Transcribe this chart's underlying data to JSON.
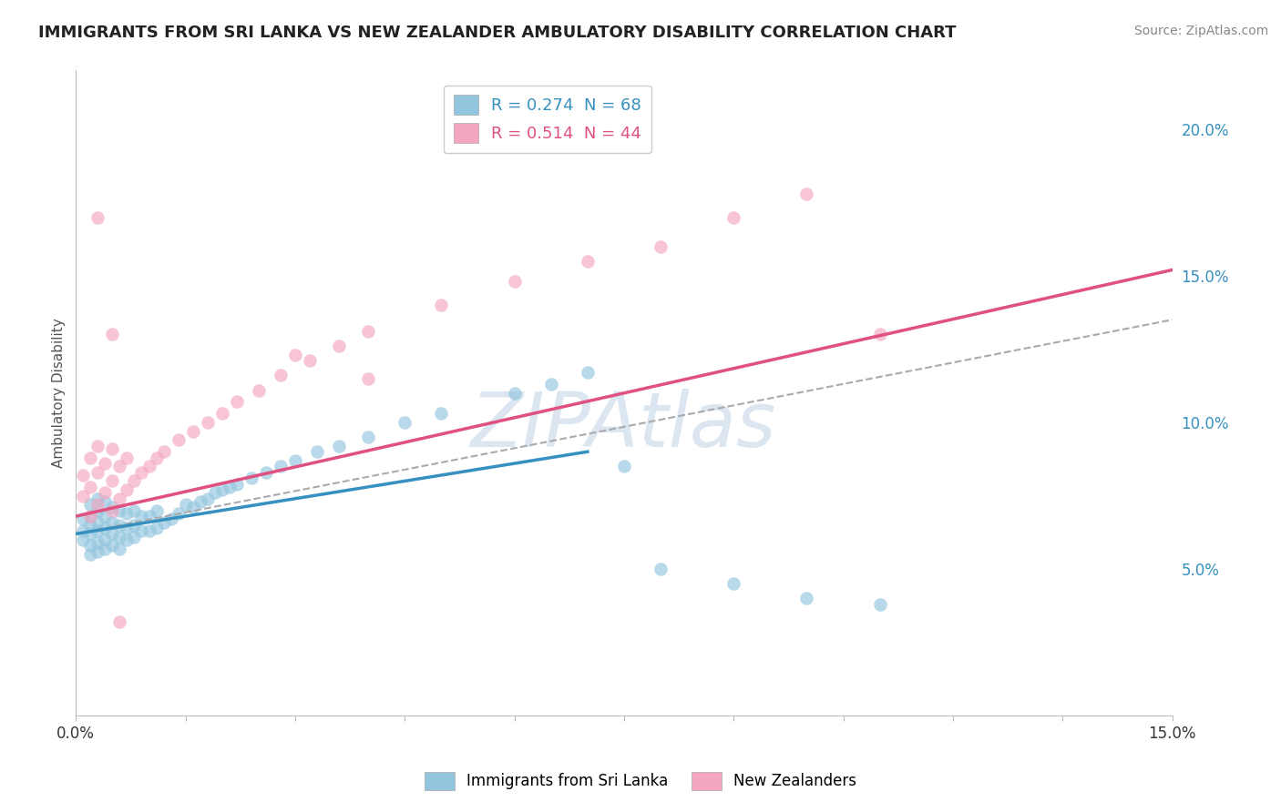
{
  "title": "IMMIGRANTS FROM SRI LANKA VS NEW ZEALANDER AMBULATORY DISABILITY CORRELATION CHART",
  "source": "Source: ZipAtlas.com",
  "ylabel": "Ambulatory Disability",
  "xlim": [
    0.0,
    0.15
  ],
  "ylim": [
    0.0,
    0.22
  ],
  "ytick_positions": [
    0.05,
    0.1,
    0.15,
    0.2
  ],
  "ytick_labels": [
    "5.0%",
    "10.0%",
    "15.0%",
    "20.0%"
  ],
  "xtick_positions": [
    0.0,
    0.15
  ],
  "xtick_labels": [
    "0.0%",
    "15.0%"
  ],
  "blue_R": 0.274,
  "blue_N": 68,
  "pink_R": 0.514,
  "pink_N": 44,
  "blue_color": "#92c5de",
  "pink_color": "#f4a6be",
  "blue_line_color": "#3690c0",
  "pink_line_color": "#e05080",
  "dashed_line_color": "#aaaaaa",
  "watermark": "ZIPAtlas",
  "background_color": "#ffffff",
  "grid_color": "#dddddd",
  "legend_label_blue": "Immigrants from Sri Lanka",
  "legend_label_pink": "New Zealanders",
  "blue_line_x0": 0.0,
  "blue_line_y0": 0.062,
  "blue_line_x1": 0.07,
  "blue_line_y1": 0.09,
  "pink_line_x0": 0.0,
  "pink_line_y0": 0.068,
  "pink_line_x1": 0.15,
  "pink_line_y1": 0.152,
  "dashed_line_x0": 0.0,
  "dashed_line_y0": 0.062,
  "dashed_line_x1": 0.15,
  "dashed_line_y1": 0.135,
  "blue_scatter_x": [
    0.001,
    0.001,
    0.001,
    0.002,
    0.002,
    0.002,
    0.002,
    0.002,
    0.002,
    0.003,
    0.003,
    0.003,
    0.003,
    0.003,
    0.003,
    0.004,
    0.004,
    0.004,
    0.004,
    0.004,
    0.005,
    0.005,
    0.005,
    0.005,
    0.006,
    0.006,
    0.006,
    0.006,
    0.007,
    0.007,
    0.007,
    0.008,
    0.008,
    0.008,
    0.009,
    0.009,
    0.01,
    0.01,
    0.011,
    0.011,
    0.012,
    0.013,
    0.014,
    0.015,
    0.016,
    0.017,
    0.018,
    0.019,
    0.02,
    0.021,
    0.022,
    0.024,
    0.026,
    0.028,
    0.03,
    0.033,
    0.036,
    0.04,
    0.045,
    0.05,
    0.06,
    0.065,
    0.07,
    0.075,
    0.08,
    0.09,
    0.1,
    0.11
  ],
  "blue_scatter_y": [
    0.06,
    0.063,
    0.067,
    0.055,
    0.058,
    0.062,
    0.065,
    0.068,
    0.072,
    0.056,
    0.059,
    0.063,
    0.066,
    0.07,
    0.074,
    0.057,
    0.06,
    0.064,
    0.068,
    0.073,
    0.058,
    0.062,
    0.066,
    0.071,
    0.057,
    0.061,
    0.065,
    0.07,
    0.06,
    0.064,
    0.069,
    0.061,
    0.065,
    0.07,
    0.063,
    0.068,
    0.063,
    0.068,
    0.064,
    0.07,
    0.066,
    0.067,
    0.069,
    0.072,
    0.071,
    0.073,
    0.074,
    0.076,
    0.077,
    0.078,
    0.079,
    0.081,
    0.083,
    0.085,
    0.087,
    0.09,
    0.092,
    0.095,
    0.1,
    0.103,
    0.11,
    0.113,
    0.117,
    0.085,
    0.05,
    0.045,
    0.04,
    0.038
  ],
  "pink_scatter_x": [
    0.001,
    0.001,
    0.002,
    0.002,
    0.002,
    0.003,
    0.003,
    0.003,
    0.004,
    0.004,
    0.005,
    0.005,
    0.005,
    0.006,
    0.006,
    0.007,
    0.007,
    0.008,
    0.009,
    0.01,
    0.011,
    0.012,
    0.014,
    0.016,
    0.018,
    0.02,
    0.022,
    0.025,
    0.028,
    0.032,
    0.036,
    0.04,
    0.05,
    0.06,
    0.07,
    0.08,
    0.09,
    0.1,
    0.11,
    0.03,
    0.003,
    0.005,
    0.006,
    0.04
  ],
  "pink_scatter_y": [
    0.075,
    0.082,
    0.068,
    0.078,
    0.088,
    0.072,
    0.083,
    0.092,
    0.076,
    0.086,
    0.07,
    0.08,
    0.091,
    0.074,
    0.085,
    0.077,
    0.088,
    0.08,
    0.083,
    0.085,
    0.088,
    0.09,
    0.094,
    0.097,
    0.1,
    0.103,
    0.107,
    0.111,
    0.116,
    0.121,
    0.126,
    0.131,
    0.14,
    0.148,
    0.155,
    0.16,
    0.17,
    0.178,
    0.13,
    0.123,
    0.17,
    0.13,
    0.032,
    0.115
  ]
}
